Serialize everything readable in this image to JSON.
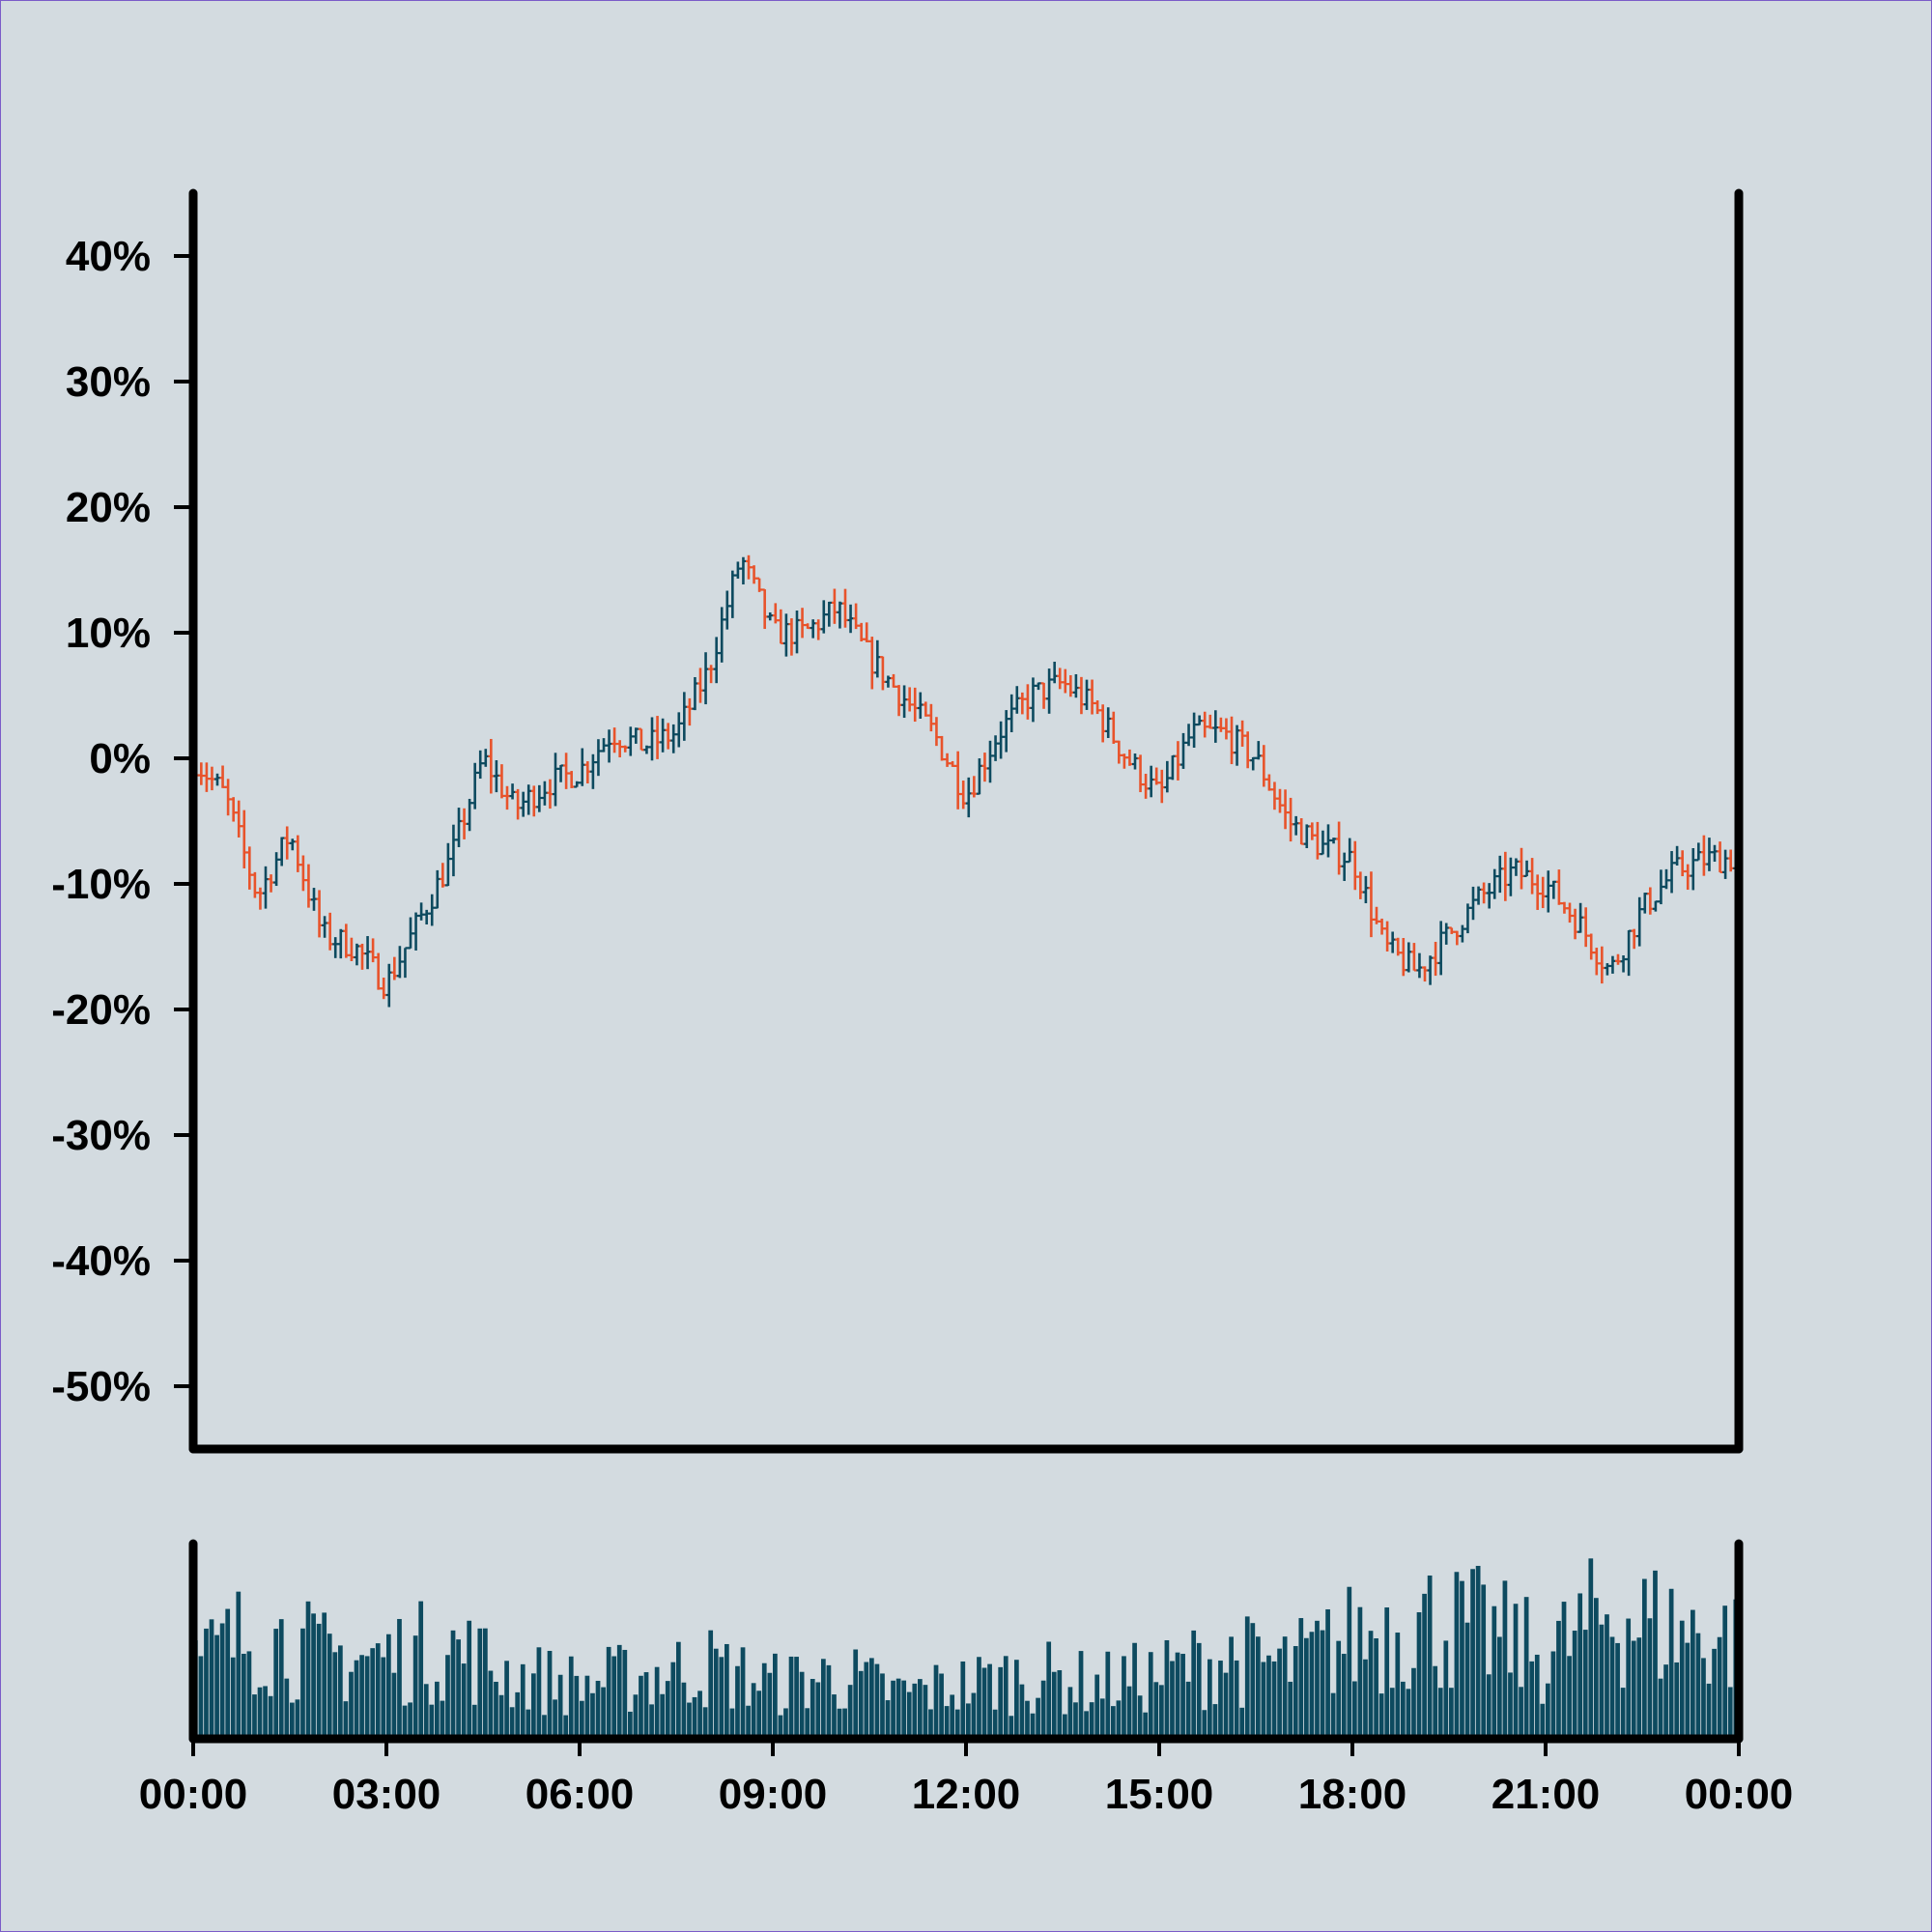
{
  "chart_data": [
    {
      "type": "ohlc",
      "x_range": [
        "00:00",
        "24:00"
      ],
      "ylim": [
        -55,
        45
      ],
      "y_ticks": [
        {
          "value": 40,
          "label": "40%"
        },
        {
          "value": 30,
          "label": "30%"
        },
        {
          "value": 20,
          "label": "20%"
        },
        {
          "value": 10,
          "label": "10%"
        },
        {
          "value": 0,
          "label": "0%"
        },
        {
          "value": -10,
          "label": "-10%"
        },
        {
          "value": -20,
          "label": "-20%"
        },
        {
          "value": -30,
          "label": "-30%"
        },
        {
          "value": -40,
          "label": "-40%"
        },
        {
          "value": -50,
          "label": "-50%"
        }
      ],
      "bar_interval_minutes": 5,
      "colors": {
        "up": "#0d4a5f",
        "down": "#e8532b"
      },
      "close_anchors": [
        {
          "t": "00:00",
          "v": 0
        },
        {
          "t": "00:30",
          "v": -3
        },
        {
          "t": "01:00",
          "v": -11
        },
        {
          "t": "01:30",
          "v": -6
        },
        {
          "t": "02:00",
          "v": -14
        },
        {
          "t": "02:30",
          "v": -15
        },
        {
          "t": "03:00",
          "v": -18
        },
        {
          "t": "03:30",
          "v": -13
        },
        {
          "t": "04:00",
          "v": -8
        },
        {
          "t": "04:30",
          "v": 0
        },
        {
          "t": "05:00",
          "v": -4
        },
        {
          "t": "05:30",
          "v": -2
        },
        {
          "t": "06:00",
          "v": -1
        },
        {
          "t": "06:30",
          "v": 2
        },
        {
          "t": "07:00",
          "v": 1
        },
        {
          "t": "07:30",
          "v": 2
        },
        {
          "t": "08:00",
          "v": 7
        },
        {
          "t": "08:30",
          "v": 16
        },
        {
          "t": "09:00",
          "v": 10
        },
        {
          "t": "09:30",
          "v": 10
        },
        {
          "t": "10:00",
          "v": 12
        },
        {
          "t": "10:30",
          "v": 8
        },
        {
          "t": "11:00",
          "v": 5
        },
        {
          "t": "11:30",
          "v": 2
        },
        {
          "t": "12:00",
          "v": -3
        },
        {
          "t": "12:30",
          "v": 2
        },
        {
          "t": "13:00",
          "v": 5
        },
        {
          "t": "13:30",
          "v": 6
        },
        {
          "t": "14:00",
          "v": 4
        },
        {
          "t": "14:30",
          "v": 0
        },
        {
          "t": "15:00",
          "v": -3
        },
        {
          "t": "15:30",
          "v": 2
        },
        {
          "t": "16:00",
          "v": 2
        },
        {
          "t": "16:30",
          "v": 0
        },
        {
          "t": "17:00",
          "v": -5
        },
        {
          "t": "17:30",
          "v": -7
        },
        {
          "t": "18:00",
          "v": -8
        },
        {
          "t": "18:30",
          "v": -15
        },
        {
          "t": "19:00",
          "v": -17
        },
        {
          "t": "19:30",
          "v": -14
        },
        {
          "t": "20:00",
          "v": -11
        },
        {
          "t": "20:30",
          "v": -9
        },
        {
          "t": "21:00",
          "v": -10
        },
        {
          "t": "21:30",
          "v": -13
        },
        {
          "t": "22:00",
          "v": -17
        },
        {
          "t": "22:30",
          "v": -12
        },
        {
          "t": "23:00",
          "v": -9
        },
        {
          "t": "23:30",
          "v": -8
        },
        {
          "t": "24:00",
          "v": -8
        }
      ]
    },
    {
      "type": "bar",
      "series_name": "volume",
      "bar_interval_minutes": 5,
      "color": "#0d4a5f",
      "relative_level_anchors": [
        {
          "t": "00:00",
          "v": 0.4
        },
        {
          "t": "01:00",
          "v": 0.6
        },
        {
          "t": "02:00",
          "v": 0.45
        },
        {
          "t": "03:00",
          "v": 0.45
        },
        {
          "t": "04:00",
          "v": 0.5
        },
        {
          "t": "05:00",
          "v": 0.35
        },
        {
          "t": "06:00",
          "v": 0.3
        },
        {
          "t": "07:00",
          "v": 0.35
        },
        {
          "t": "08:00",
          "v": 0.4
        },
        {
          "t": "09:00",
          "v": 0.3
        },
        {
          "t": "10:00",
          "v": 0.35
        },
        {
          "t": "11:00",
          "v": 0.25
        },
        {
          "t": "12:00",
          "v": 0.3
        },
        {
          "t": "13:00",
          "v": 0.35
        },
        {
          "t": "14:00",
          "v": 0.3
        },
        {
          "t": "15:00",
          "v": 0.35
        },
        {
          "t": "16:00",
          "v": 0.45
        },
        {
          "t": "17:00",
          "v": 0.4
        },
        {
          "t": "18:00",
          "v": 0.55
        },
        {
          "t": "19:00",
          "v": 0.65
        },
        {
          "t": "20:00",
          "v": 0.6
        },
        {
          "t": "21:00",
          "v": 0.45
        },
        {
          "t": "22:00",
          "v": 0.7
        },
        {
          "t": "23:00",
          "v": 0.6
        },
        {
          "t": "24:00",
          "v": 0.55
        }
      ]
    }
  ],
  "x_axis": {
    "ticks": [
      "00:00",
      "03:00",
      "06:00",
      "09:00",
      "12:00",
      "15:00",
      "18:00",
      "21:00",
      "00:00"
    ]
  }
}
